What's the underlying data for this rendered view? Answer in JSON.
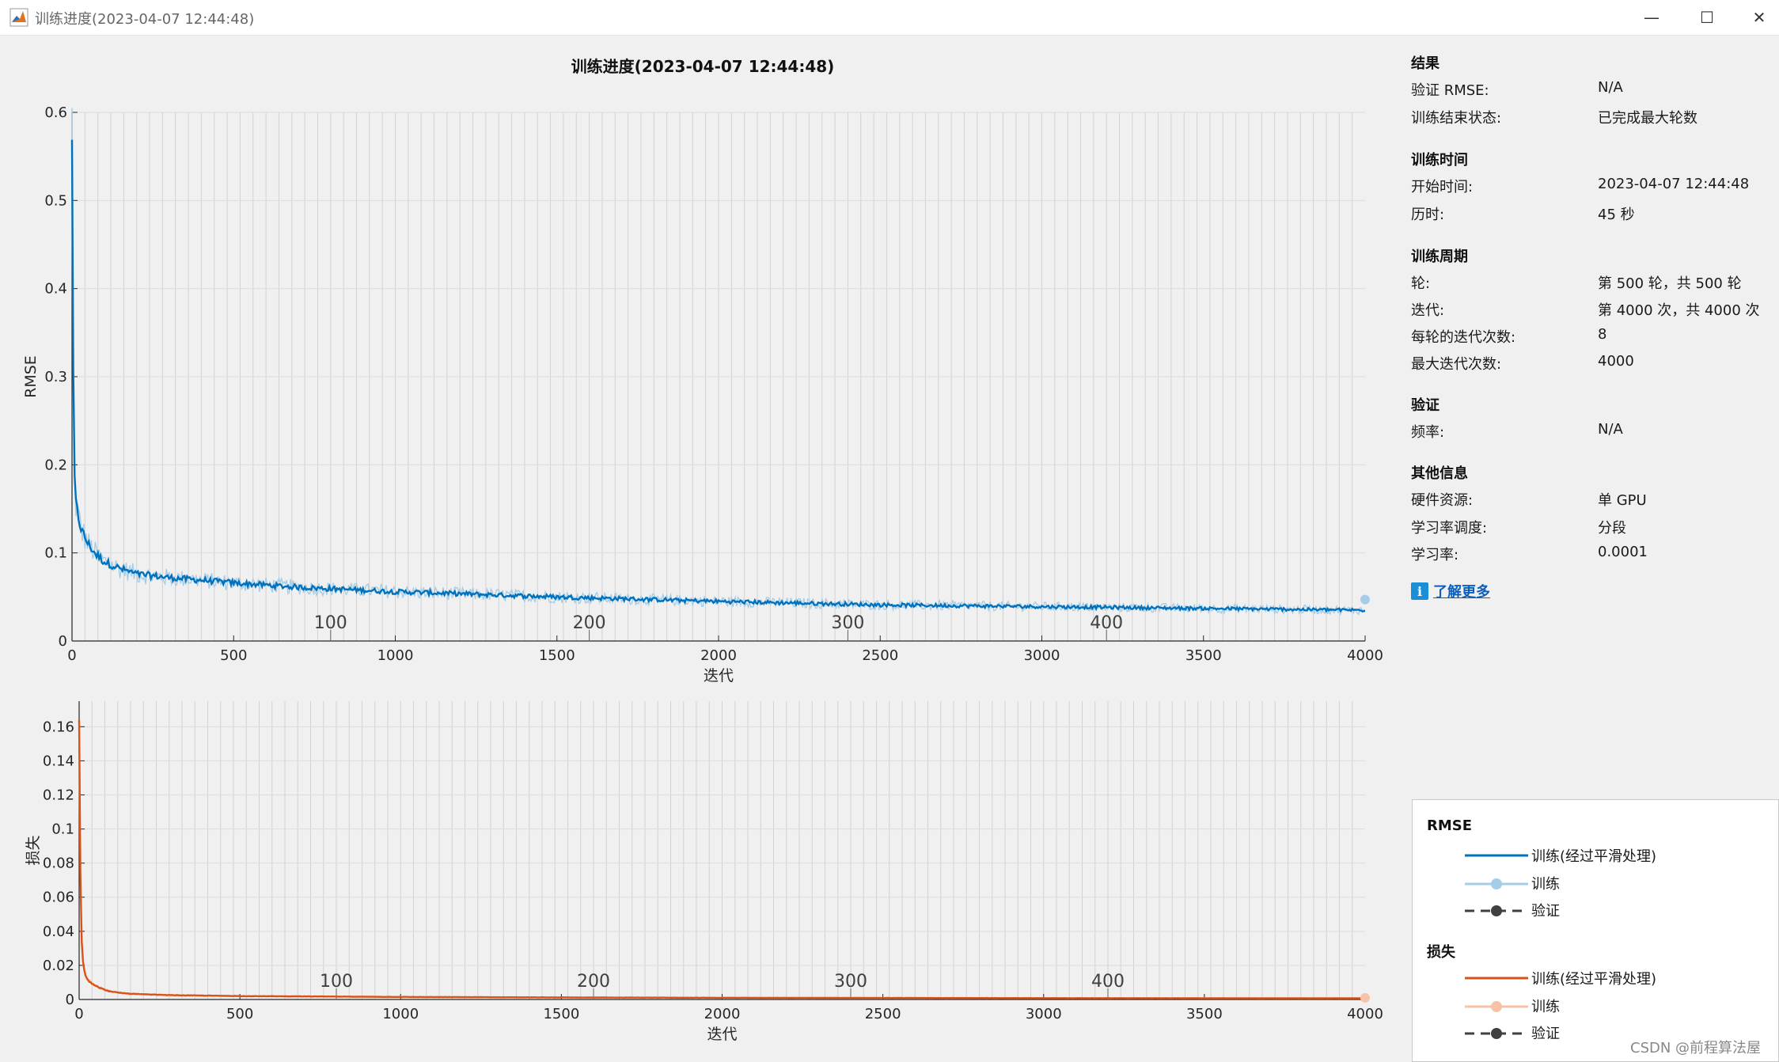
{
  "window": {
    "title": "训练进度(2023-04-07 12:44:48)",
    "icon": "matlab-icon",
    "controls": {
      "minimize": "—",
      "maximize": "☐",
      "close": "✕"
    }
  },
  "figure": {
    "title": "训练进度(2023-04-07 12:44:48)"
  },
  "chart_data": [
    {
      "type": "line",
      "name": "rmse-chart",
      "title": "训练进度(2023-04-07 12:44:48)",
      "xlabel": "迭代",
      "ylabel": "RMSE",
      "xlim": [
        0,
        4000
      ],
      "ylim": [
        0,
        0.6
      ],
      "xticks": [
        0,
        500,
        1000,
        1500,
        2000,
        2500,
        3000,
        3500,
        4000
      ],
      "yticks": [
        0,
        0.1,
        0.2,
        0.3,
        0.4,
        0.5,
        0.6
      ],
      "ytick_labels": [
        "0",
        "0.1",
        "0.2",
        "0.3",
        "0.4",
        "0.5",
        "0.6"
      ],
      "epoch_labels": [
        {
          "epoch": 100,
          "x": 800
        },
        {
          "epoch": 200,
          "x": 1600
        },
        {
          "epoch": 300,
          "x": 2400
        },
        {
          "epoch": 400,
          "x": 3200
        }
      ],
      "grid": true,
      "iterations_per_epoch": 8,
      "series": [
        {
          "name": "训练(经过平滑处理)",
          "color": "#0072bd",
          "x": [
            0,
            5,
            10,
            20,
            30,
            50,
            75,
            100,
            150,
            200,
            300,
            400,
            500,
            700,
            1000,
            1500,
            2000,
            2500,
            3000,
            3500,
            4000
          ],
          "values": [
            0.58,
            0.22,
            0.16,
            0.14,
            0.125,
            0.11,
            0.098,
            0.09,
            0.082,
            0.076,
            0.072,
            0.069,
            0.066,
            0.061,
            0.056,
            0.05,
            0.045,
            0.041,
            0.039,
            0.037,
            0.035
          ]
        },
        {
          "name": "训练",
          "color": "#a6cde8",
          "last_point": {
            "x": 4000,
            "y": 0.047
          }
        },
        {
          "name": "验证",
          "color": "#404040"
        }
      ]
    },
    {
      "type": "line",
      "name": "loss-chart",
      "xlabel": "迭代",
      "ylabel": "损失",
      "xlim": [
        0,
        4000
      ],
      "ylim": [
        0,
        0.175
      ],
      "xticks": [
        0,
        500,
        1000,
        1500,
        2000,
        2500,
        3000,
        3500,
        4000
      ],
      "yticks": [
        0,
        0.02,
        0.04,
        0.06,
        0.08,
        0.1,
        0.12,
        0.14,
        0.16
      ],
      "ytick_labels": [
        "0",
        "0.02",
        "0.04",
        "0.06",
        "0.08",
        "0.1",
        "0.12",
        "0.14",
        "0.16"
      ],
      "epoch_labels": [
        {
          "epoch": 100,
          "x": 800
        },
        {
          "epoch": 200,
          "x": 1600
        },
        {
          "epoch": 300,
          "x": 2400
        },
        {
          "epoch": 400,
          "x": 3200
        }
      ],
      "grid": true,
      "series": [
        {
          "name": "训练(经过平滑处理)",
          "color": "#d95319",
          "x": [
            0,
            3,
            6,
            10,
            15,
            20,
            30,
            50,
            75,
            100,
            150,
            200,
            300,
            500,
            1000,
            1500,
            2000,
            3000,
            4000
          ],
          "values": [
            0.17,
            0.09,
            0.045,
            0.025,
            0.018,
            0.014,
            0.011,
            0.008,
            0.006,
            0.0045,
            0.0035,
            0.003,
            0.0025,
            0.002,
            0.0015,
            0.0012,
            0.001,
            0.0008,
            0.0007
          ]
        },
        {
          "name": "训练",
          "color": "#f7c3a8",
          "last_point": {
            "x": 4000,
            "y": 0.001
          }
        },
        {
          "name": "验证",
          "color": "#404040"
        }
      ]
    }
  ],
  "info": {
    "results": {
      "title": "结果",
      "rows": [
        {
          "label": "验证 RMSE:",
          "value": "N/A"
        },
        {
          "label": "训练结束状态:",
          "value": "已完成最大轮数"
        }
      ]
    },
    "time": {
      "title": "训练时间",
      "rows": [
        {
          "label": "开始时间:",
          "value": "2023-04-07 12:44:48"
        },
        {
          "label": "历时:",
          "value": "45 秒"
        }
      ]
    },
    "cycle": {
      "title": "训练周期",
      "rows": [
        {
          "label": "轮:",
          "value": "第 500 轮，共 500 轮"
        },
        {
          "label": "迭代:",
          "value": "第 4000 次，共 4000 次"
        },
        {
          "label": "每轮的迭代次数:",
          "value": "8"
        },
        {
          "label": "最大迭代次数:",
          "value": "4000"
        }
      ]
    },
    "validation": {
      "title": "验证",
      "rows": [
        {
          "label": "频率:",
          "value": "N/A"
        }
      ]
    },
    "other": {
      "title": "其他信息",
      "rows": [
        {
          "label": "硬件资源:",
          "value": "单 GPU"
        },
        {
          "label": "学习率调度:",
          "value": "分段"
        },
        {
          "label": "学习率:",
          "value": "0.0001"
        }
      ]
    },
    "learn_more": {
      "label": "了解更多",
      "icon": "info-icon"
    }
  },
  "legend": {
    "rmse": {
      "title": "RMSE",
      "items": [
        {
          "label": "训练(经过平滑处理)",
          "color": "#0072bd",
          "style": "solid"
        },
        {
          "label": "训练",
          "color": "#a6cde8",
          "style": "solid-marker"
        },
        {
          "label": "验证",
          "color": "#404040",
          "style": "dashed-marker"
        }
      ]
    },
    "loss": {
      "title": "损失",
      "items": [
        {
          "label": "训练(经过平滑处理)",
          "color": "#d95319",
          "style": "solid"
        },
        {
          "label": "训练",
          "color": "#f7c3a8",
          "style": "solid-marker"
        },
        {
          "label": "验证",
          "color": "#404040",
          "style": "dashed-marker"
        }
      ]
    }
  },
  "watermark": "CSDN @前程算法屋"
}
